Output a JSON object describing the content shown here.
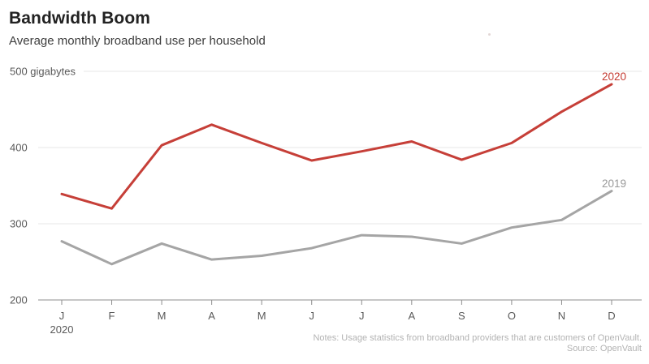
{
  "header": {
    "title": "Bandwidth Boom",
    "subtitle": "Average monthly broadband use per household"
  },
  "chart_data": {
    "type": "line",
    "categories": [
      "J",
      "F",
      "M",
      "A",
      "M",
      "J",
      "J",
      "A",
      "S",
      "O",
      "N",
      "D"
    ],
    "x_axis_year_label": "2020",
    "series": [
      {
        "name": "2020",
        "color": "#c63f38",
        "label_color": "#c43a31",
        "values": [
          339,
          320,
          403,
          430,
          406,
          383,
          395,
          408,
          384,
          406,
          447,
          483
        ]
      },
      {
        "name": "2019",
        "color": "#a5a5a5",
        "label_color": "#999999",
        "values": [
          277,
          247,
          274,
          253,
          258,
          268,
          285,
          283,
          274,
          295,
          305,
          343
        ]
      }
    ],
    "yticks": [
      {
        "value": 500,
        "label": "500 gigabytes"
      },
      {
        "value": 400,
        "label": "400"
      },
      {
        "value": 300,
        "label": "300"
      },
      {
        "value": 200,
        "label": "200"
      }
    ],
    "ylim": [
      200,
      500
    ],
    "ylabel": "gigabytes",
    "grid": "horizontal",
    "legend_position": "line-end-labels"
  },
  "footer": {
    "notes": "Notes: Usage statistics from broadband providers that are customers of OpenVault.",
    "source": "Source: OpenVault"
  },
  "colors": {
    "gridline": "#e7e7e7",
    "axis": "#8c8c8c",
    "tick_text": "#595959",
    "title_text": "#222222",
    "notes_text": "#b3b3b3",
    "background": "#ffffff"
  }
}
